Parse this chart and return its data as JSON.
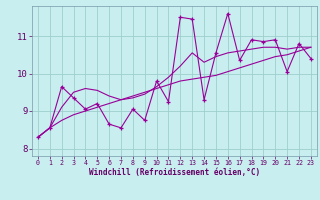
{
  "xlabel": "Windchill (Refroidissement éolien,°C)",
  "background_color": "#c8eef0",
  "grid_color": "#9dcfcc",
  "line_color": "#990099",
  "hours": [
    0,
    1,
    2,
    3,
    4,
    5,
    6,
    7,
    8,
    9,
    10,
    11,
    12,
    13,
    14,
    15,
    16,
    17,
    18,
    19,
    20,
    21,
    22,
    23
  ],
  "windchill": [
    8.3,
    8.55,
    9.65,
    9.35,
    9.05,
    9.2,
    8.65,
    8.55,
    9.05,
    8.75,
    9.8,
    9.25,
    11.5,
    11.45,
    9.3,
    10.55,
    11.6,
    10.35,
    10.9,
    10.85,
    10.9,
    10.05,
    10.8,
    10.4
  ],
  "trend_line": [
    8.3,
    8.55,
    8.75,
    8.9,
    9.0,
    9.1,
    9.2,
    9.3,
    9.4,
    9.5,
    9.6,
    9.7,
    9.8,
    9.85,
    9.9,
    9.95,
    10.05,
    10.15,
    10.25,
    10.35,
    10.45,
    10.5,
    10.6,
    10.7
  ],
  "smooth_line": [
    8.3,
    8.55,
    9.1,
    9.5,
    9.6,
    9.55,
    9.4,
    9.3,
    9.35,
    9.45,
    9.65,
    9.9,
    10.2,
    10.55,
    10.3,
    10.45,
    10.55,
    10.6,
    10.65,
    10.7,
    10.7,
    10.65,
    10.7,
    10.7
  ],
  "ylim": [
    7.8,
    11.8
  ],
  "xlim": [
    -0.5,
    23.5
  ],
  "yticks": [
    8,
    9,
    10,
    11
  ],
  "xticks": [
    0,
    1,
    2,
    3,
    4,
    5,
    6,
    7,
    8,
    9,
    10,
    11,
    12,
    13,
    14,
    15,
    16,
    17,
    18,
    19,
    20,
    21,
    22,
    23
  ],
  "tick_color": "#660066",
  "label_fontsize": 5.5,
  "ytick_fontsize": 6.5,
  "xtick_fontsize": 4.8
}
